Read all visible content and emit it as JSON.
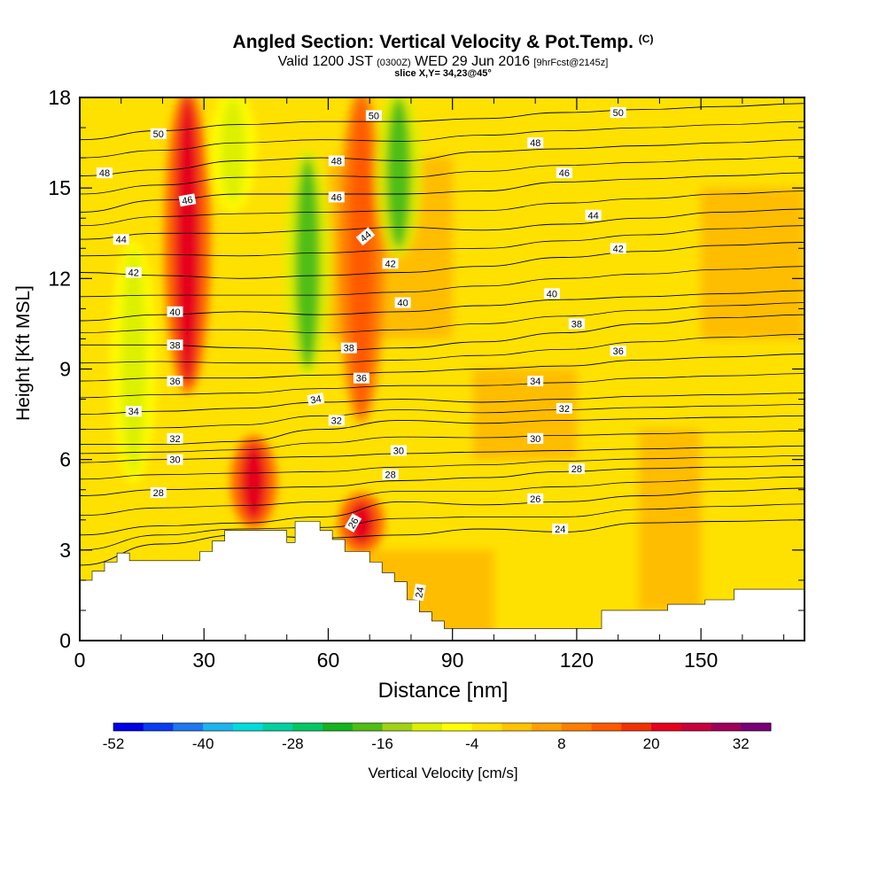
{
  "header": {
    "title": "Angled Section: Vertical Velocity & Pot.Temp.",
    "title_suffix": "(C)",
    "subtitle_valid": "Valid 1200 JST",
    "subtitle_z": "(0300Z)",
    "subtitle_date": "WED 29 Jun 2016",
    "subtitle_fcst": "[9hrFcst@2145z]",
    "slice": "slice X,Y= 34,23@45°"
  },
  "chart_data": {
    "type": "heatmap",
    "xlabel": "Distance [nm]",
    "ylabel": "Height [Kft MSL]",
    "xlim": [
      0,
      175
    ],
    "ylim": [
      0,
      18
    ],
    "x_ticks": [
      0,
      30,
      60,
      90,
      120,
      150
    ],
    "y_ticks": [
      0,
      3,
      6,
      9,
      12,
      15,
      18
    ],
    "field": "Vertical Velocity [cm/s]",
    "colorbar": {
      "title": "Vertical Velocity [cm/s]",
      "tick_labels": [
        "-52",
        "-40",
        "-28",
        "-16",
        "-4",
        "8",
        "20",
        "32"
      ],
      "range": [
        -52,
        36
      ],
      "colors": [
        "#0000e6",
        "#0a3cf0",
        "#1e78f0",
        "#1eb4f0",
        "#00dcdc",
        "#00d2a0",
        "#00c864",
        "#14b41e",
        "#50be14",
        "#a0d214",
        "#dcf000",
        "#ffff00",
        "#ffe100",
        "#ffc300",
        "#ffa000",
        "#ff7d00",
        "#ff5a00",
        "#f03200",
        "#e6001e",
        "#c8003c",
        "#a0005a",
        "#780078"
      ]
    },
    "updraft_zones": [
      {
        "x_center": 26,
        "y_range": [
          8.5,
          18
        ],
        "value": 20
      },
      {
        "x_center": 42,
        "y_range": [
          4.0,
          6.5
        ],
        "value": 20
      },
      {
        "x_center": 68,
        "y_range": [
          7.5,
          18
        ],
        "value": 14
      },
      {
        "x_center": 68,
        "y_range": [
          3.2,
          4.6
        ],
        "value": 20
      }
    ],
    "downdraft_zones": [
      {
        "x_center": 13,
        "y_range": [
          5.5,
          13
        ],
        "value": -10
      },
      {
        "x_center": 37,
        "y_range": [
          14.5,
          18
        ],
        "value": -10
      },
      {
        "x_center": 55,
        "y_range": [
          9.0,
          16
        ],
        "value": -18
      },
      {
        "x_center": 77,
        "y_range": [
          13.0,
          18
        ],
        "value": -20
      }
    ],
    "theta_isotherms": [
      {
        "value": 24,
        "heights": [
          2.5,
          3.2,
          3.5,
          3.4,
          3.5,
          3.7,
          3.6,
          3.9,
          3.95,
          4.0
        ]
      },
      {
        "value": 26,
        "heights": [
          3.5,
          3.8,
          3.9,
          4.1,
          4.6,
          4.5,
          4.6,
          4.8,
          4.95,
          5.05
        ]
      },
      {
        "value": 28,
        "heights": [
          4.8,
          5.0,
          5.05,
          5.1,
          5.3,
          5.4,
          5.6,
          5.7,
          5.75,
          5.8
        ]
      },
      {
        "value": 30,
        "heights": [
          5.9,
          6.0,
          6.05,
          6.1,
          6.2,
          6.25,
          6.3,
          6.35,
          6.4,
          6.45
        ]
      },
      {
        "value": 32,
        "heights": [
          6.5,
          6.5,
          6.6,
          7.0,
          7.3,
          7.2,
          7.3,
          7.35,
          7.4,
          7.45
        ]
      },
      {
        "value": 34,
        "heights": [
          7.5,
          7.6,
          7.7,
          7.9,
          8.0,
          7.9,
          8.0,
          8.1,
          8.15,
          8.2
        ]
      },
      {
        "value": 36,
        "heights": [
          8.6,
          8.7,
          8.7,
          8.8,
          8.9,
          9.0,
          9.1,
          9.3,
          9.4,
          9.5
        ]
      },
      {
        "value": 38,
        "heights": [
          9.8,
          9.8,
          9.7,
          9.6,
          9.7,
          9.9,
          10.2,
          10.5,
          10.7,
          10.8
        ]
      },
      {
        "value": 40,
        "heights": [
          10.6,
          10.8,
          10.9,
          10.8,
          10.9,
          11.1,
          11.3,
          11.4,
          11.5,
          11.6
        ]
      },
      {
        "value": 42,
        "heights": [
          12.2,
          12.1,
          12.0,
          12.1,
          12.2,
          12.4,
          12.7,
          12.9,
          13.1,
          13.2
        ]
      },
      {
        "value": 44,
        "heights": [
          13.3,
          13.5,
          13.5,
          13.6,
          13.7,
          13.6,
          13.8,
          14.0,
          14.2,
          14.3
        ]
      },
      {
        "value": 46,
        "heights": [
          14.2,
          14.6,
          14.8,
          14.8,
          14.8,
          14.9,
          15.2,
          15.3,
          15.4,
          15.5
        ]
      },
      {
        "value": 48,
        "heights": [
          15.4,
          15.6,
          15.9,
          16.0,
          15.9,
          16.2,
          16.3,
          16.4,
          16.5,
          16.6
        ]
      },
      {
        "value": 50,
        "heights": [
          16.6,
          16.9,
          17.1,
          17.2,
          17.2,
          17.3,
          17.5,
          17.6,
          17.7,
          17.8
        ]
      }
    ],
    "isotherm_label_positions": [
      {
        "label": "24",
        "x": 82,
        "y": 1.6,
        "rot": -80
      },
      {
        "label": "24",
        "x": 116,
        "y": 3.7,
        "rot": 0
      },
      {
        "label": "26",
        "x": 110,
        "y": 4.7,
        "rot": 0
      },
      {
        "label": "26",
        "x": 66,
        "y": 3.9,
        "rot": -60
      },
      {
        "label": "28",
        "x": 19,
        "y": 4.9,
        "rot": 0
      },
      {
        "label": "28",
        "x": 75,
        "y": 5.5,
        "rot": 0
      },
      {
        "label": "28",
        "x": 120,
        "y": 5.7,
        "rot": 0
      },
      {
        "label": "30",
        "x": 23,
        "y": 6.0,
        "rot": 0
      },
      {
        "label": "30",
        "x": 77,
        "y": 6.3,
        "rot": 0
      },
      {
        "label": "30",
        "x": 110,
        "y": 6.7,
        "rot": 0
      },
      {
        "label": "32",
        "x": 23,
        "y": 6.7,
        "rot": 0
      },
      {
        "label": "32",
        "x": 62,
        "y": 7.3,
        "rot": 0
      },
      {
        "label": "32",
        "x": 117,
        "y": 7.7,
        "rot": 0
      },
      {
        "label": "34",
        "x": 13,
        "y": 7.6,
        "rot": 0
      },
      {
        "label": "34",
        "x": 57,
        "y": 8.0,
        "rot": -10
      },
      {
        "label": "34",
        "x": 110,
        "y": 8.6,
        "rot": 0
      },
      {
        "label": "36",
        "x": 23,
        "y": 8.6,
        "rot": 0
      },
      {
        "label": "36",
        "x": 68,
        "y": 8.7,
        "rot": 0
      },
      {
        "label": "36",
        "x": 130,
        "y": 9.6,
        "rot": 0
      },
      {
        "label": "38",
        "x": 23,
        "y": 9.8,
        "rot": 0
      },
      {
        "label": "38",
        "x": 65,
        "y": 9.7,
        "rot": 0
      },
      {
        "label": "38",
        "x": 120,
        "y": 10.5,
        "rot": 0
      },
      {
        "label": "40",
        "x": 23,
        "y": 10.9,
        "rot": 0
      },
      {
        "label": "40",
        "x": 78,
        "y": 11.2,
        "rot": 0
      },
      {
        "label": "40",
        "x": 114,
        "y": 11.5,
        "rot": 0
      },
      {
        "label": "42",
        "x": 13,
        "y": 12.2,
        "rot": 0
      },
      {
        "label": "42",
        "x": 75,
        "y": 12.5,
        "rot": 0
      },
      {
        "label": "42",
        "x": 130,
        "y": 13.0,
        "rot": 0
      },
      {
        "label": "44",
        "x": 10,
        "y": 13.3,
        "rot": 0
      },
      {
        "label": "44",
        "x": 69,
        "y": 13.4,
        "rot": -40
      },
      {
        "label": "44",
        "x": 124,
        "y": 14.1,
        "rot": 0
      },
      {
        "label": "46",
        "x": 26,
        "y": 14.6,
        "rot": -10
      },
      {
        "label": "46",
        "x": 62,
        "y": 14.7,
        "rot": 0
      },
      {
        "label": "46",
        "x": 117,
        "y": 15.5,
        "rot": 0
      },
      {
        "label": "48",
        "x": 6,
        "y": 15.5,
        "rot": 0
      },
      {
        "label": "48",
        "x": 62,
        "y": 15.9,
        "rot": 0
      },
      {
        "label": "48",
        "x": 110,
        "y": 16.5,
        "rot": 0
      },
      {
        "label": "50",
        "x": 19,
        "y": 16.8,
        "rot": 0
      },
      {
        "label": "50",
        "x": 71,
        "y": 17.4,
        "rot": 0
      },
      {
        "label": "50",
        "x": 130,
        "y": 17.5,
        "rot": 0
      }
    ],
    "terrain": [
      [
        0,
        2.0
      ],
      [
        3,
        2.0
      ],
      [
        3,
        2.3
      ],
      [
        6,
        2.3
      ],
      [
        6,
        2.6
      ],
      [
        9,
        2.6
      ],
      [
        9,
        2.9
      ],
      [
        12,
        2.9
      ],
      [
        12,
        2.65
      ],
      [
        29,
        2.65
      ],
      [
        29,
        2.95
      ],
      [
        32,
        2.95
      ],
      [
        32,
        3.3
      ],
      [
        35,
        3.3
      ],
      [
        35,
        3.65
      ],
      [
        50,
        3.65
      ],
      [
        50,
        3.25
      ],
      [
        52,
        3.25
      ],
      [
        52,
        3.95
      ],
      [
        58,
        3.95
      ],
      [
        58,
        3.65
      ],
      [
        61,
        3.65
      ],
      [
        61,
        3.35
      ],
      [
        64,
        3.35
      ],
      [
        64,
        2.95
      ],
      [
        70,
        2.95
      ],
      [
        70,
        2.6
      ],
      [
        73,
        2.6
      ],
      [
        73,
        2.25
      ],
      [
        76,
        2.25
      ],
      [
        76,
        1.95
      ],
      [
        79,
        1.95
      ],
      [
        79,
        1.35
      ],
      [
        82,
        1.35
      ],
      [
        82,
        0.95
      ],
      [
        85,
        0.95
      ],
      [
        85,
        0.65
      ],
      [
        88,
        0.65
      ],
      [
        88,
        0.4
      ],
      [
        126,
        0.4
      ],
      [
        126,
        1.0
      ],
      [
        142,
        1.0
      ],
      [
        142,
        1.2
      ],
      [
        151,
        1.2
      ],
      [
        151,
        1.35
      ],
      [
        158,
        1.35
      ],
      [
        158,
        1.7
      ],
      [
        175,
        1.7
      ]
    ]
  }
}
